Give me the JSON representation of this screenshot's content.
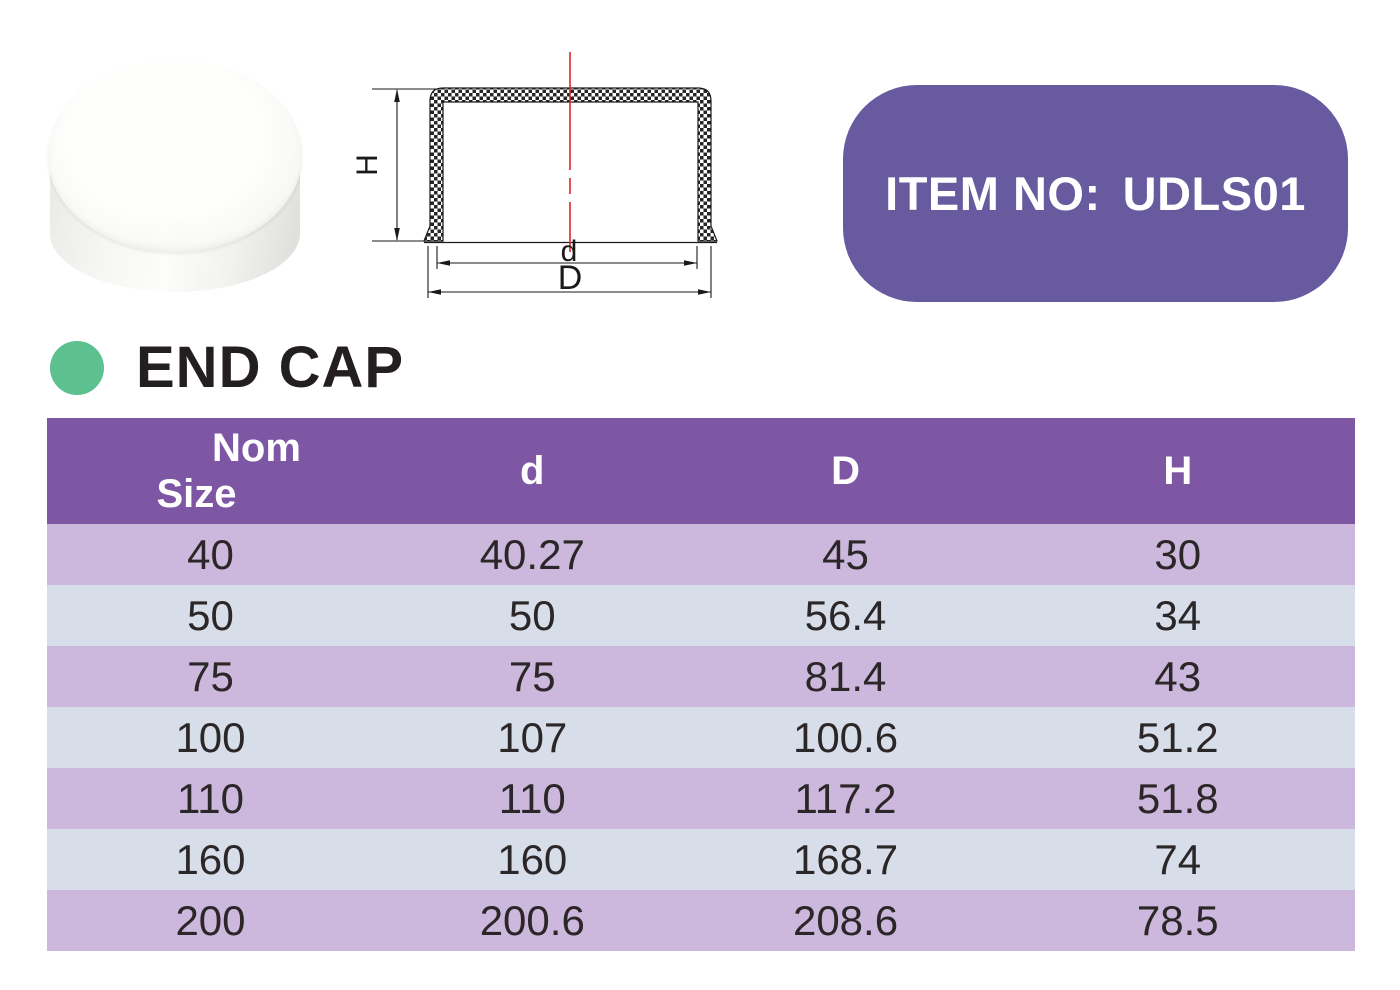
{
  "badge": {
    "label": "ITEM NO:",
    "value": "UDLS01",
    "bg_color": "#675a9f",
    "text_color": "#ffffff"
  },
  "section": {
    "title": "END CAP",
    "bullet_color": "#5cc08f"
  },
  "diagram": {
    "labels": {
      "height": "H",
      "inner_diameter": "d",
      "outer_diameter": "D"
    },
    "centerline_color": "#e3242b"
  },
  "table": {
    "header_bg": "#7d57a4",
    "row_colors": [
      "#ccb8dd",
      "#d7dde9"
    ],
    "headers": {
      "nom_line1": "Nom",
      "nom_line2": "Size",
      "d": "d",
      "D": "D",
      "H": "H"
    },
    "rows": [
      [
        "40",
        "40.27",
        "45",
        "30"
      ],
      [
        "50",
        "50",
        "56.4",
        "34"
      ],
      [
        "75",
        "75",
        "81.4",
        "43"
      ],
      [
        "100",
        "107",
        "100.6",
        "51.2"
      ],
      [
        "110",
        "110",
        "117.2",
        "51.8"
      ],
      [
        "160",
        "160",
        "168.7",
        "74"
      ],
      [
        "200",
        "200.6",
        "208.6",
        "78.5"
      ]
    ]
  }
}
